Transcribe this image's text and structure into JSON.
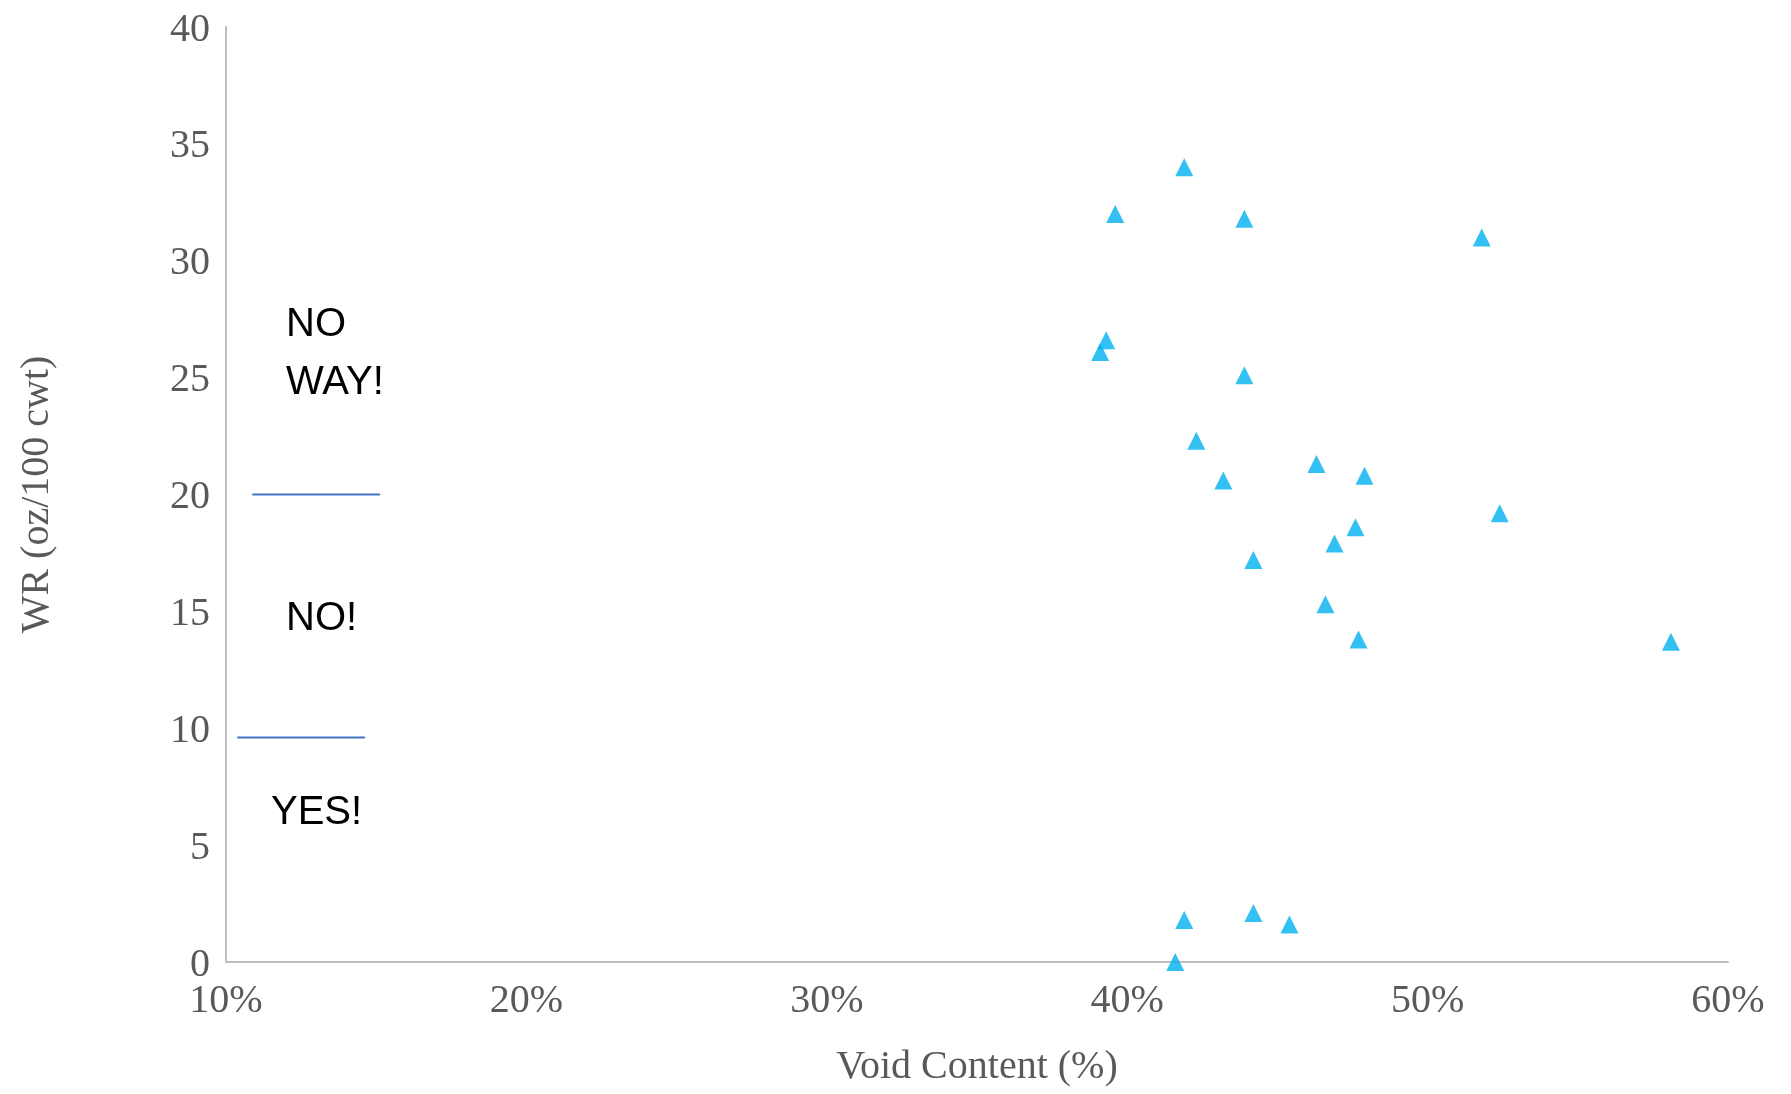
{
  "chart_data": {
    "type": "scatter",
    "xlabel": "Void Content (%)",
    "ylabel": "WR (oz/100 cwt)",
    "xlim": [
      10,
      60
    ],
    "xticks": [
      {
        "value": 10,
        "label": "10%"
      },
      {
        "value": 20,
        "label": "20%"
      },
      {
        "value": 30,
        "label": "30%"
      },
      {
        "value": 40,
        "label": "40%"
      },
      {
        "value": 50,
        "label": "50%"
      },
      {
        "value": 60,
        "label": "60%"
      }
    ],
    "ylim": [
      0,
      40
    ],
    "yticks": [
      0,
      5,
      10,
      15,
      20,
      25,
      30,
      35,
      40
    ],
    "grid": false,
    "marker": "triangle",
    "series": [
      {
        "color": "#00b0f0",
        "x": [
          41.9,
          39.6,
          43.9,
          51.8,
          39.3,
          39.1,
          43.9,
          42.3,
          46.3,
          47.9,
          43.2,
          52.4,
          47.6,
          46.9,
          44.2,
          46.6,
          47.7,
          58.1,
          41.9,
          44.2,
          45.4,
          41.6
        ],
        "values": [
          34.0,
          32.0,
          31.8,
          31.0,
          26.6,
          26.1,
          25.1,
          22.3,
          21.3,
          20.8,
          20.6,
          19.2,
          18.6,
          17.9,
          17.2,
          15.3,
          13.8,
          13.7,
          1.8,
          2.1,
          1.6,
          0
        ]
      },
      {
        "type": "line",
        "color": "#4472c4",
        "marker": "none",
        "line_style": "solid",
        "x": [
          10.9,
          15.1
        ],
        "values": [
          20,
          20
        ]
      },
      {
        "type": "line",
        "color": "#4472c4",
        "marker": "none",
        "line_style": "solid",
        "x": [
          10.4,
          14.6
        ],
        "values": [
          9.6,
          9.6
        ]
      }
    ],
    "annotations": [
      "NO\nWAY!",
      "NO!",
      "YES!"
    ]
  }
}
